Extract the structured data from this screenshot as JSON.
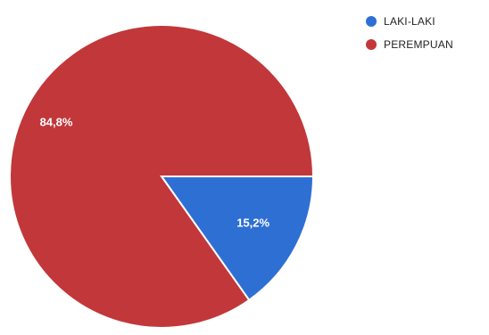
{
  "chart_data": {
    "type": "pie",
    "categories": [
      "LAKI-LAKI",
      "PEREMPUAN"
    ],
    "values": [
      15.2,
      84.8
    ],
    "value_labels": [
      "15,2%",
      "84,8%"
    ],
    "colors": [
      "#2e6fd4",
      "#c2373a"
    ],
    "legend_position": "top-right",
    "title": ""
  },
  "legend": {
    "items": [
      {
        "label": "LAKI-LAKI",
        "color": "#2e6fd4"
      },
      {
        "label": "PEREMPUAN",
        "color": "#c2373a"
      }
    ]
  }
}
